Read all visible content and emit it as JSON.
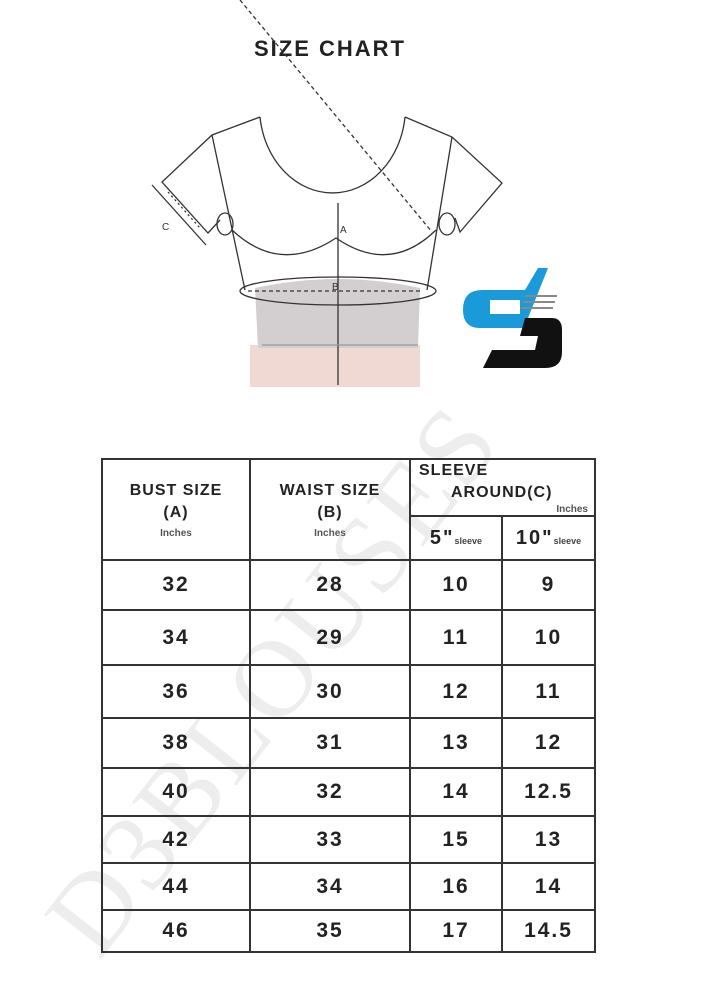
{
  "title": "SIZE CHART",
  "diagram": {
    "labels": {
      "a": "A",
      "b": "B",
      "c": "C"
    }
  },
  "logo": {
    "text": "d3",
    "colors": {
      "blue": "#1a9ad9",
      "black": "#111111"
    }
  },
  "watermark": "D3BLOUSES",
  "table": {
    "headers": {
      "bust": {
        "label": "BUST SIZE",
        "code": "(A)",
        "unit": "Inches"
      },
      "waist": {
        "label": "WAIST SIZE",
        "code": "(B)",
        "unit": "Inches"
      },
      "sleeve": {
        "label_line1": "SLEEVE",
        "label_line2": "AROUND",
        "code": "(C)",
        "unit": "Inches",
        "sub1_num": "5\"",
        "sub1_word": "sleeve",
        "sub2_num": "10\"",
        "sub2_word": "sleeve"
      }
    },
    "rows": [
      [
        "32",
        "28",
        "10",
        "9"
      ],
      [
        "34",
        "29",
        "11",
        "10"
      ],
      [
        "36",
        "30",
        "12",
        "11"
      ],
      [
        "38",
        "31",
        "13",
        "12"
      ],
      [
        "40",
        "32",
        "14",
        "12.5"
      ],
      [
        "42",
        "33",
        "15",
        "13"
      ],
      [
        "44",
        "34",
        "16",
        "14"
      ],
      [
        "46",
        "35",
        "17",
        "14.5"
      ]
    ]
  }
}
